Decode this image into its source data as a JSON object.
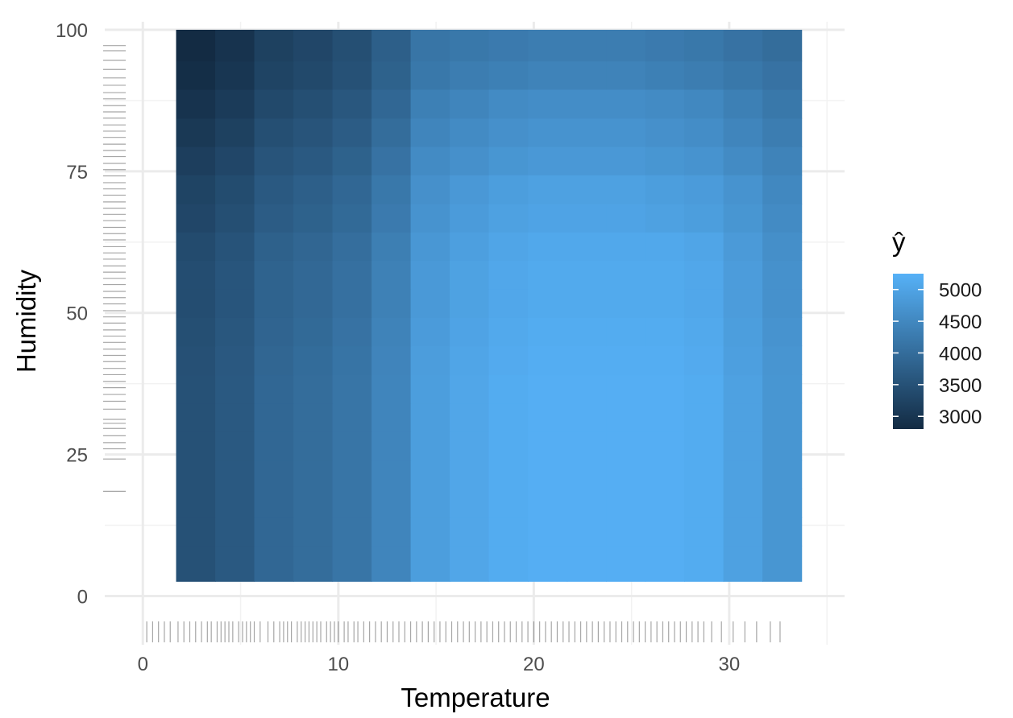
{
  "chart_data": {
    "type": "heatmap",
    "title": "",
    "xlabel": "Temperature",
    "ylabel": "Humidity",
    "xlim": [
      -0.3,
      35.9
    ],
    "ylim": [
      -3.2,
      100
    ],
    "x_ticks": [
      0,
      10,
      20,
      30
    ],
    "y_ticks": [
      0,
      25,
      50,
      75,
      100
    ],
    "grid": true,
    "x_edges": [
      1.7,
      3.7,
      5.7,
      7.7,
      9.7,
      11.7,
      13.7,
      15.7,
      17.7,
      19.7,
      21.7,
      23.7,
      25.7,
      27.7,
      29.7,
      31.7,
      33.7
    ],
    "y_edges": [
      2.6,
      8.9,
      14.0,
      19.0,
      24.0,
      29.1,
      34.1,
      39.1,
      44.2,
      49.2,
      54.2,
      59.3,
      64.3,
      69.3,
      74.4,
      79.4,
      84.4,
      89.5,
      94.5,
      100
    ],
    "values": [
      [
        3500,
        3650,
        3900,
        4000,
        4150,
        4450,
        4900,
        5050,
        5150,
        5200,
        5200,
        5200,
        5200,
        5150,
        4950,
        4750
      ],
      [
        3500,
        3650,
        3900,
        4000,
        4150,
        4450,
        4900,
        5050,
        5150,
        5200,
        5200,
        5200,
        5200,
        5150,
        4950,
        4750
      ],
      [
        3500,
        3650,
        3900,
        4000,
        4150,
        4450,
        4900,
        5050,
        5150,
        5200,
        5200,
        5200,
        5200,
        5150,
        4950,
        4750
      ],
      [
        3500,
        3650,
        3900,
        4000,
        4150,
        4450,
        4900,
        5050,
        5150,
        5200,
        5200,
        5200,
        5200,
        5150,
        4950,
        4750
      ],
      [
        3500,
        3650,
        3900,
        4000,
        4150,
        4450,
        4900,
        5050,
        5150,
        5200,
        5200,
        5200,
        5200,
        5150,
        4950,
        4750
      ],
      [
        3500,
        3650,
        3900,
        4000,
        4150,
        4450,
        4900,
        5050,
        5150,
        5200,
        5200,
        5200,
        5200,
        5150,
        4950,
        4750
      ],
      [
        3500,
        3650,
        3900,
        4000,
        4150,
        4450,
        4900,
        5050,
        5150,
        5200,
        5200,
        5200,
        5200,
        5150,
        4950,
        4750
      ],
      [
        3480,
        3630,
        3880,
        3980,
        4130,
        4430,
        4880,
        5030,
        5130,
        5180,
        5180,
        5180,
        5180,
        5130,
        4930,
        4730
      ],
      [
        3450,
        3600,
        3850,
        3950,
        4100,
        4400,
        4850,
        5000,
        5100,
        5150,
        5150,
        5150,
        5150,
        5100,
        4900,
        4700
      ],
      [
        3420,
        3570,
        3820,
        3920,
        4070,
        4370,
        4820,
        4970,
        5070,
        5120,
        5120,
        5120,
        5120,
        5070,
        4870,
        4670
      ],
      [
        3420,
        3570,
        3820,
        3920,
        4070,
        4370,
        4820,
        4970,
        5070,
        5120,
        5120,
        5120,
        5120,
        5070,
        4870,
        4670
      ],
      [
        3380,
        3530,
        3780,
        3880,
        4030,
        4330,
        4780,
        4930,
        5030,
        5080,
        5080,
        5080,
        5080,
        5030,
        4830,
        4630
      ],
      [
        3300,
        3450,
        3700,
        3800,
        3950,
        4250,
        4700,
        4850,
        4950,
        5000,
        5000,
        5000,
        4950,
        4900,
        4750,
        4550
      ],
      [
        3250,
        3400,
        3650,
        3750,
        3900,
        4200,
        4650,
        4800,
        4900,
        4950,
        4950,
        4950,
        4900,
        4850,
        4700,
        4500
      ],
      [
        3150,
        3300,
        3550,
        3650,
        3800,
        4100,
        4550,
        4650,
        4750,
        4800,
        4800,
        4800,
        4750,
        4700,
        4550,
        4400
      ],
      [
        3050,
        3200,
        3450,
        3550,
        3700,
        4000,
        4450,
        4550,
        4650,
        4700,
        4700,
        4700,
        4650,
        4600,
        4450,
        4300
      ],
      [
        2950,
        3100,
        3350,
        3450,
        3600,
        3900,
        4350,
        4450,
        4550,
        4600,
        4600,
        4600,
        4550,
        4500,
        4350,
        4200
      ],
      [
        2850,
        3000,
        3250,
        3350,
        3500,
        3800,
        4200,
        4300,
        4350,
        4400,
        4400,
        4400,
        4350,
        4300,
        4200,
        4100
      ],
      [
        2800,
        2950,
        3200,
        3300,
        3450,
        3750,
        4150,
        4200,
        4250,
        4300,
        4300,
        4300,
        4250,
        4200,
        4100,
        4000
      ]
    ],
    "legend": {
      "title": "ŷ",
      "labels": [
        "5000",
        "4500",
        "4000",
        "3500",
        "3000"
      ],
      "ticks": [
        5000,
        4500,
        4000,
        3500,
        3000
      ],
      "range": [
        2800,
        5250
      ],
      "low_color": "#132B43",
      "high_color": "#56B1F7",
      "placement": "right"
    },
    "rug_x": [
      0.2,
      0.5,
      0.8,
      1.1,
      1.4,
      1.8,
      2.1,
      2.4,
      2.7,
      3.0,
      3.3,
      3.5,
      3.8,
      4.0,
      4.2,
      4.4,
      4.6,
      4.9,
      5.1,
      5.3,
      5.5,
      5.7,
      6.0,
      6.4,
      6.7,
      7.0,
      7.2,
      7.4,
      7.6,
      7.9,
      8.1,
      8.3,
      8.5,
      8.7,
      8.9,
      9.1,
      9.4,
      9.6,
      9.8,
      10.0,
      10.3,
      10.5,
      10.8,
      11.0,
      11.3,
      11.6,
      11.9,
      12.2,
      12.5,
      12.8,
      13.1,
      13.4,
      13.7,
      14.0,
      14.3,
      14.6,
      14.9,
      15.2,
      15.5,
      15.8,
      16.1,
      16.4,
      16.7,
      17.0,
      17.3,
      17.6,
      17.9,
      18.2,
      18.5,
      18.8,
      19.1,
      19.4,
      19.7,
      20.0,
      20.3,
      20.6,
      20.9,
      21.2,
      21.5,
      21.8,
      22.1,
      22.4,
      22.7,
      23.0,
      23.3,
      23.6,
      23.9,
      24.2,
      24.5,
      24.8,
      25.1,
      25.4,
      25.7,
      26.0,
      26.3,
      26.6,
      26.9,
      27.2,
      27.5,
      27.8,
      28.1,
      28.4,
      28.7,
      29.1,
      29.6,
      30.2,
      30.8,
      31.4,
      32.1,
      32.6
    ],
    "rug_y": [
      18.5,
      24.2,
      26.0,
      27.1,
      28.3,
      29.6,
      30.5,
      31.2,
      33.0,
      34.4,
      35.6,
      36.8,
      37.9,
      39.1,
      40.2,
      41.4,
      42.5,
      43.6,
      44.8,
      45.9,
      47.0,
      48.2,
      49.3,
      50.4,
      51.6,
      52.7,
      53.8,
      55.0,
      56.1,
      57.2,
      58.3,
      59.5,
      60.6,
      61.7,
      62.9,
      64.0,
      65.1,
      66.3,
      67.4,
      68.5,
      69.6,
      70.8,
      71.9,
      73.0,
      74.2,
      75.3,
      76.4,
      77.6,
      78.7,
      79.8,
      81.0,
      82.1,
      83.2,
      84.4,
      85.5,
      86.6,
      87.8,
      88.9,
      90.2,
      91.5,
      93.0,
      94.6,
      96.3,
      97.2
    ]
  }
}
